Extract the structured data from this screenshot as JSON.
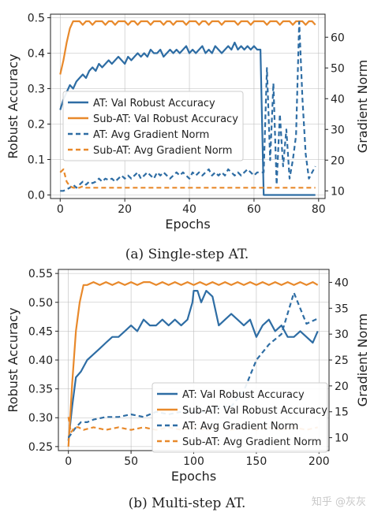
{
  "colors": {
    "blue": "#2e6da4",
    "orange": "#e8892b",
    "axis": "#222222",
    "grid": "#bbbbbb"
  },
  "watermark": "知乎 @灰灰",
  "chart_data": [
    {
      "type": "line",
      "caption": "(a) Single-step AT.",
      "xlabel": "Epochs",
      "ylabel": "Robust Accuracy",
      "y2label": "Gradient Norm",
      "xlim": [
        -3,
        82
      ],
      "ylim": [
        -0.01,
        0.51
      ],
      "y2lim": [
        7.5,
        67.5
      ],
      "xticks": [
        0,
        20,
        40,
        60,
        80
      ],
      "yticks": [
        0.0,
        0.1,
        0.2,
        0.3,
        0.4,
        0.5
      ],
      "y2ticks": [
        10,
        20,
        30,
        40,
        50,
        60
      ],
      "grid": true,
      "legend_position": "center-left",
      "series": [
        {
          "name": "AT: Val Robust Accuracy",
          "axis": "left",
          "style": "solid",
          "color": "#2e6da4",
          "x": [
            0,
            1,
            2,
            3,
            4,
            5,
            6,
            7,
            8,
            9,
            10,
            11,
            12,
            13,
            14,
            15,
            16,
            17,
            18,
            19,
            20,
            21,
            22,
            23,
            24,
            25,
            26,
            27,
            28,
            29,
            30,
            31,
            32,
            33,
            34,
            35,
            36,
            37,
            38,
            39,
            40,
            41,
            42,
            43,
            44,
            45,
            46,
            47,
            48,
            49,
            50,
            51,
            52,
            53,
            54,
            55,
            56,
            57,
            58,
            59,
            60,
            61,
            62,
            63,
            64,
            65,
            66,
            67,
            68,
            69,
            70,
            71,
            72,
            73,
            74,
            75,
            76,
            77,
            78,
            79
          ],
          "values": [
            0.24,
            0.27,
            0.29,
            0.31,
            0.3,
            0.32,
            0.33,
            0.34,
            0.33,
            0.35,
            0.36,
            0.35,
            0.37,
            0.36,
            0.37,
            0.38,
            0.37,
            0.38,
            0.39,
            0.38,
            0.37,
            0.39,
            0.38,
            0.39,
            0.4,
            0.39,
            0.4,
            0.39,
            0.41,
            0.4,
            0.4,
            0.41,
            0.39,
            0.4,
            0.41,
            0.4,
            0.41,
            0.4,
            0.41,
            0.42,
            0.4,
            0.41,
            0.4,
            0.41,
            0.42,
            0.4,
            0.41,
            0.4,
            0.42,
            0.41,
            0.4,
            0.41,
            0.42,
            0.41,
            0.43,
            0.41,
            0.42,
            0.41,
            0.42,
            0.41,
            0.42,
            0.41,
            0.41,
            0.0,
            0.0,
            0.0,
            0.0,
            0.0,
            0.0,
            0.0,
            0.0,
            0.0,
            0.0,
            0.0,
            0.0,
            0.0,
            0.0,
            0.0,
            0.0,
            0.0
          ]
        },
        {
          "name": "Sub-AT: Val Robust Accuracy",
          "axis": "left",
          "style": "solid",
          "color": "#e8892b",
          "x": [
            0,
            1,
            2,
            3,
            4,
            5,
            6,
            7,
            8,
            9,
            10,
            11,
            12,
            13,
            14,
            15,
            16,
            17,
            18,
            19,
            20,
            21,
            22,
            23,
            24,
            25,
            26,
            27,
            28,
            29,
            30,
            31,
            32,
            33,
            34,
            35,
            36,
            37,
            38,
            39,
            40,
            41,
            42,
            43,
            44,
            45,
            46,
            47,
            48,
            49,
            50,
            51,
            52,
            53,
            54,
            55,
            56,
            57,
            58,
            59,
            60,
            61,
            62,
            63,
            64,
            65,
            66,
            67,
            68,
            69,
            70,
            71,
            72,
            73,
            74,
            75,
            76,
            77,
            78,
            79
          ],
          "values": [
            0.34,
            0.38,
            0.43,
            0.47,
            0.49,
            0.49,
            0.49,
            0.48,
            0.49,
            0.49,
            0.48,
            0.49,
            0.49,
            0.49,
            0.48,
            0.49,
            0.49,
            0.48,
            0.49,
            0.49,
            0.49,
            0.48,
            0.49,
            0.49,
            0.48,
            0.49,
            0.49,
            0.49,
            0.48,
            0.49,
            0.49,
            0.49,
            0.48,
            0.49,
            0.49,
            0.48,
            0.49,
            0.49,
            0.49,
            0.48,
            0.49,
            0.49,
            0.49,
            0.48,
            0.49,
            0.49,
            0.48,
            0.49,
            0.49,
            0.49,
            0.48,
            0.49,
            0.49,
            0.49,
            0.49,
            0.48,
            0.49,
            0.49,
            0.49,
            0.48,
            0.49,
            0.49,
            0.49,
            0.49,
            0.48,
            0.49,
            0.49,
            0.49,
            0.48,
            0.49,
            0.49,
            0.49,
            0.48,
            0.49,
            0.49,
            0.49,
            0.48,
            0.49,
            0.49,
            0.48
          ]
        },
        {
          "name": "AT: Avg Gradient Norm",
          "axis": "right",
          "style": "dashed",
          "color": "#2e6da4",
          "x": [
            0,
            1,
            2,
            3,
            4,
            5,
            6,
            7,
            8,
            9,
            10,
            11,
            12,
            13,
            14,
            15,
            16,
            17,
            18,
            19,
            20,
            21,
            22,
            23,
            24,
            25,
            26,
            27,
            28,
            29,
            30,
            31,
            32,
            33,
            34,
            35,
            36,
            37,
            38,
            39,
            40,
            41,
            42,
            43,
            44,
            45,
            46,
            47,
            48,
            49,
            50,
            51,
            52,
            53,
            54,
            55,
            56,
            57,
            58,
            59,
            60,
            61,
            62,
            63,
            64,
            65,
            66,
            67,
            68,
            69,
            70,
            71,
            72,
            73,
            74,
            75,
            76,
            77,
            78,
            79
          ],
          "values": [
            10,
            10,
            10.5,
            11,
            12,
            11,
            12,
            13,
            12,
            13,
            12.5,
            13,
            14,
            13,
            14,
            13.5,
            14,
            13,
            14,
            15,
            14,
            15,
            14,
            15,
            16,
            14,
            15,
            16,
            15,
            14,
            16,
            15,
            16,
            15,
            14,
            15,
            16,
            15,
            16,
            15,
            14,
            16,
            15,
            16,
            15,
            16,
            17,
            15,
            16,
            15,
            16,
            15,
            17,
            16,
            15,
            16,
            15,
            16,
            17,
            16,
            15,
            16,
            16,
            16,
            50,
            20,
            45,
            12,
            35,
            18,
            30,
            14,
            20,
            28,
            65,
            40,
            22,
            14,
            16,
            18
          ]
        },
        {
          "name": "Sub-AT: Avg Gradient Norm",
          "axis": "right",
          "style": "dashed",
          "color": "#e8892b",
          "x": [
            0,
            1,
            2,
            3,
            4,
            5,
            6,
            7,
            8,
            9,
            10,
            11,
            12,
            13,
            14,
            15,
            16,
            17,
            18,
            19,
            20,
            21,
            22,
            23,
            24,
            25,
            26,
            27,
            28,
            29,
            30,
            31,
            32,
            33,
            34,
            35,
            36,
            37,
            38,
            39,
            40,
            41,
            42,
            43,
            44,
            45,
            46,
            47,
            48,
            49,
            50,
            51,
            52,
            53,
            54,
            55,
            56,
            57,
            58,
            59,
            60,
            61,
            62,
            63,
            64,
            65,
            66,
            67,
            68,
            69,
            70,
            71,
            72,
            73,
            74,
            75,
            76,
            77,
            78,
            79
          ],
          "values": [
            16,
            17,
            13,
            11.5,
            11,
            11,
            11,
            11.5,
            11,
            11,
            11,
            11,
            11,
            11,
            11,
            11,
            11,
            11,
            11,
            11,
            11,
            11,
            11,
            11,
            11,
            11,
            11,
            11,
            11,
            11,
            11,
            11,
            11,
            11,
            11,
            11,
            11,
            11,
            11,
            11,
            11,
            11,
            11,
            11,
            11,
            11,
            11,
            11,
            11,
            11,
            11,
            11,
            11,
            11,
            11,
            11,
            11,
            11,
            11,
            11,
            11,
            11,
            11,
            11,
            11,
            11,
            11,
            11,
            11,
            11,
            11,
            11,
            11,
            11,
            11,
            11,
            11,
            11,
            11,
            11
          ]
        }
      ]
    },
    {
      "type": "line",
      "caption": "(b) Multi-step AT.",
      "xlabel": "Epochs",
      "ylabel": "Robust Accuracy",
      "y2label": "Gradient Norm",
      "xlim": [
        -8,
        208
      ],
      "ylim": [
        0.243,
        0.557
      ],
      "y2lim": [
        7.5,
        42.5
      ],
      "xticks": [
        0,
        50,
        100,
        150,
        200
      ],
      "yticks": [
        0.25,
        0.3,
        0.35,
        0.4,
        0.45,
        0.5,
        0.55
      ],
      "y2ticks": [
        10,
        15,
        20,
        25,
        30,
        35,
        40
      ],
      "grid": true,
      "legend_position": "lower-right",
      "series": [
        {
          "name": "AT: Val Robust Accuracy",
          "axis": "left",
          "style": "solid",
          "color": "#2e6da4",
          "x": [
            0,
            3,
            6,
            10,
            15,
            20,
            25,
            30,
            35,
            40,
            45,
            50,
            55,
            60,
            65,
            70,
            75,
            80,
            85,
            90,
            95,
            99,
            100,
            103,
            106,
            110,
            115,
            120,
            125,
            130,
            135,
            140,
            145,
            150,
            155,
            160,
            165,
            170,
            175,
            180,
            185,
            190,
            195,
            199
          ],
          "values": [
            0.26,
            0.32,
            0.37,
            0.38,
            0.4,
            0.41,
            0.42,
            0.43,
            0.44,
            0.44,
            0.45,
            0.46,
            0.45,
            0.47,
            0.46,
            0.46,
            0.47,
            0.46,
            0.47,
            0.46,
            0.47,
            0.5,
            0.52,
            0.52,
            0.5,
            0.52,
            0.51,
            0.46,
            0.47,
            0.48,
            0.47,
            0.46,
            0.47,
            0.44,
            0.46,
            0.47,
            0.45,
            0.46,
            0.44,
            0.44,
            0.45,
            0.44,
            0.43,
            0.45
          ]
        },
        {
          "name": "Sub-AT: Val Robust Accuracy",
          "axis": "left",
          "style": "solid",
          "color": "#e8892b",
          "x": [
            0,
            3,
            6,
            9,
            12,
            15,
            20,
            25,
            30,
            35,
            40,
            45,
            50,
            55,
            60,
            65,
            70,
            75,
            80,
            85,
            90,
            95,
            100,
            105,
            110,
            115,
            120,
            125,
            130,
            135,
            140,
            145,
            150,
            155,
            160,
            165,
            170,
            175,
            180,
            185,
            190,
            195,
            199
          ],
          "values": [
            0.25,
            0.36,
            0.45,
            0.5,
            0.53,
            0.53,
            0.535,
            0.53,
            0.535,
            0.53,
            0.535,
            0.53,
            0.535,
            0.53,
            0.535,
            0.535,
            0.53,
            0.535,
            0.53,
            0.535,
            0.53,
            0.535,
            0.53,
            0.535,
            0.53,
            0.535,
            0.53,
            0.535,
            0.53,
            0.535,
            0.53,
            0.535,
            0.53,
            0.535,
            0.53,
            0.535,
            0.53,
            0.535,
            0.53,
            0.535,
            0.53,
            0.535,
            0.53
          ]
        },
        {
          "name": "AT: Avg Gradient Norm",
          "axis": "right",
          "style": "dashed",
          "color": "#2e6da4",
          "x": [
            0,
            3,
            6,
            10,
            15,
            20,
            30,
            40,
            50,
            60,
            70,
            80,
            90,
            100,
            110,
            120,
            130,
            140,
            150,
            160,
            170,
            180,
            190,
            199
          ],
          "values": [
            10,
            11,
            12,
            13,
            13,
            13.5,
            14,
            14,
            14.5,
            14,
            15,
            14.5,
            15,
            15,
            15,
            16,
            16,
            19,
            25,
            28,
            30,
            38,
            32,
            33
          ]
        },
        {
          "name": "Sub-AT: Avg Gradient Norm",
          "axis": "right",
          "style": "dashed",
          "color": "#e8892b",
          "x": [
            0,
            2,
            5,
            8,
            12,
            20,
            30,
            40,
            50,
            60,
            70,
            80,
            90,
            100,
            110,
            120,
            130,
            140,
            150,
            160,
            170,
            180,
            190,
            199
          ],
          "values": [
            14,
            11,
            12,
            12,
            11.5,
            12,
            11.5,
            12,
            11.5,
            12,
            11.5,
            12,
            11.5,
            12,
            11.5,
            12,
            11.5,
            12,
            11.5,
            12,
            11.5,
            12,
            11.5,
            12
          ]
        }
      ]
    }
  ]
}
